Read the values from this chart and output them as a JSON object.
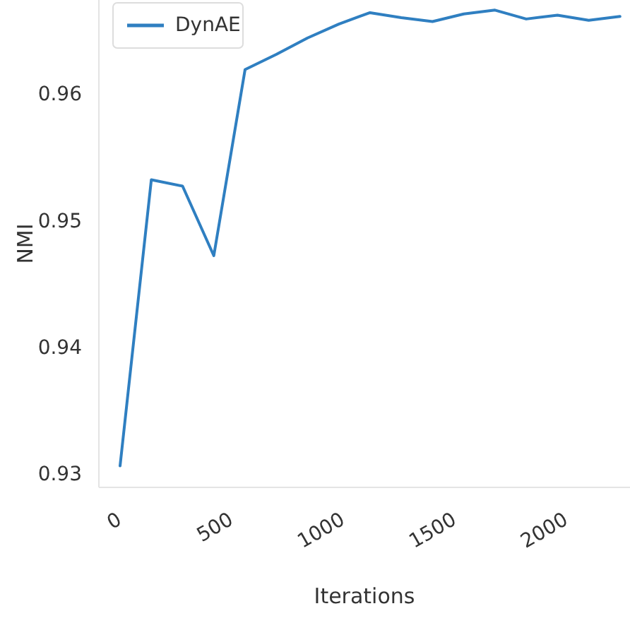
{
  "chart_data": {
    "type": "line",
    "xlabel": "Iterations",
    "ylabel": "NMI",
    "x": [
      0,
      140,
      280,
      420,
      560,
      700,
      840,
      980,
      1120,
      1260,
      1400,
      1540,
      1680,
      1820,
      1960,
      2100,
      2240
    ],
    "series": [
      {
        "name": "DynAE",
        "color": "#2f7fc1",
        "values": [
          0.9307,
          0.9533,
          0.9528,
          0.9473,
          0.962,
          0.9632,
          0.9645,
          0.9656,
          0.9665,
          0.9661,
          0.9658,
          0.9664,
          0.9667,
          0.966,
          0.9663,
          0.9659,
          0.9662
        ]
      }
    ],
    "xlim": [
      -95,
      2285
    ],
    "xticks": [
      0,
      500,
      1000,
      1500,
      2000
    ],
    "ylim": [
      0.929,
      0.9675
    ],
    "yticks": [
      0.93,
      0.94,
      0.95,
      0.96
    ],
    "grid": false,
    "legend": "top left"
  }
}
